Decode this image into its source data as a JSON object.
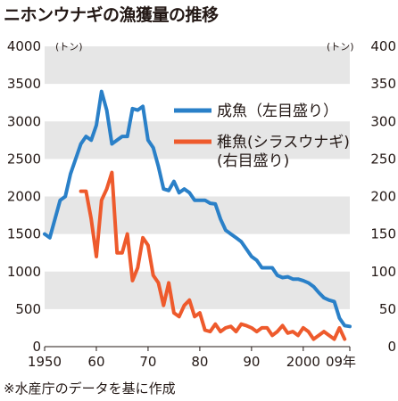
{
  "header": {
    "title": "ニホンウナギの漁獲量の推移"
  },
  "footer": {
    "note": "※水産庁のデータを基に作成"
  },
  "colors": {
    "adult": "#2a80c8",
    "juvenile": "#ee5a2c",
    "band": "#e6e6e6"
  },
  "chart_data": {
    "type": "line",
    "title": "ニホンウナギの漁獲量の推移",
    "xlim": [
      1950,
      2009
    ],
    "x_tick_labels": [
      "1950",
      "60",
      "70",
      "80",
      "90",
      "2000",
      "09年"
    ],
    "x_tick_values": [
      1950,
      1960,
      1970,
      1980,
      1990,
      2000,
      2009
    ],
    "left_axis": {
      "unit": "(トン)",
      "range": [
        0,
        4000
      ],
      "tick_labels": [
        "0",
        "500",
        "1000",
        "1500",
        "2000",
        "2500",
        "3000",
        "3500",
        "4000"
      ]
    },
    "right_axis": {
      "unit": "(トン)",
      "range": [
        0,
        400
      ],
      "tick_labels": [
        "0",
        "50",
        "100",
        "150",
        "200",
        "250",
        "300",
        "350",
        "400"
      ]
    },
    "grid": "alternating horizontal bands",
    "legend_position": "top-right",
    "series": [
      {
        "name": "成魚",
        "legend_label": "成魚（左目盛り）",
        "axis": "left",
        "x": [
          1950,
          1951,
          1952,
          1953,
          1954,
          1955,
          1956,
          1957,
          1958,
          1959,
          1960,
          1961,
          1962,
          1963,
          1964,
          1965,
          1966,
          1967,
          1968,
          1969,
          1970,
          1971,
          1972,
          1973,
          1974,
          1975,
          1976,
          1977,
          1978,
          1979,
          1980,
          1981,
          1982,
          1983,
          1984,
          1985,
          1986,
          1987,
          1988,
          1989,
          1990,
          1991,
          1992,
          1993,
          1994,
          1995,
          1996,
          1997,
          1998,
          1999,
          2000,
          2001,
          2002,
          2003,
          2004,
          2005,
          2006,
          2007,
          2008,
          2009
        ],
        "values": [
          1500,
          1450,
          1700,
          1950,
          2000,
          2300,
          2500,
          2700,
          2800,
          2750,
          2950,
          3400,
          3150,
          2700,
          2750,
          2800,
          2800,
          3170,
          3150,
          3200,
          2750,
          2650,
          2400,
          2100,
          2080,
          2200,
          2050,
          2100,
          2050,
          1950,
          1950,
          1950,
          1910,
          1900,
          1700,
          1550,
          1500,
          1450,
          1400,
          1300,
          1200,
          1150,
          1050,
          1050,
          1050,
          950,
          920,
          930,
          900,
          900,
          880,
          850,
          800,
          720,
          650,
          620,
          600,
          380,
          280,
          270
        ]
      },
      {
        "name": "稚魚",
        "legend_label": [
          "稚魚(シラスウナギ)",
          "(右目盛り)"
        ],
        "axis": "right",
        "x": [
          1957,
          1958,
          1959,
          1960,
          1961,
          1962,
          1963,
          1964,
          1965,
          1966,
          1967,
          1968,
          1969,
          1970,
          1971,
          1972,
          1973,
          1974,
          1975,
          1976,
          1977,
          1978,
          1979,
          1980,
          1981,
          1982,
          1983,
          1984,
          1985,
          1986,
          1987,
          1988,
          1989,
          1990,
          1991,
          1992,
          1993,
          1994,
          1995,
          1996,
          1997,
          1998,
          1999,
          2000,
          2001,
          2002,
          2003,
          2004,
          2005,
          2006,
          2007,
          2008
        ],
        "values": [
          207,
          207,
          170,
          120,
          195,
          210,
          232,
          125,
          125,
          150,
          88,
          105,
          145,
          135,
          95,
          85,
          55,
          85,
          45,
          40,
          55,
          62,
          40,
          45,
          22,
          20,
          30,
          20,
          25,
          27,
          20,
          30,
          28,
          25,
          20,
          25,
          25,
          15,
          20,
          28,
          18,
          20,
          15,
          25,
          20,
          10,
          15,
          20,
          15,
          10,
          25,
          10
        ]
      }
    ]
  }
}
